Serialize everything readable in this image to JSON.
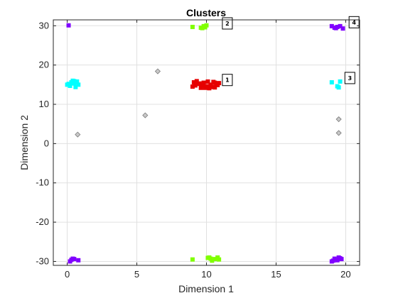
{
  "chart_data": {
    "type": "scatter",
    "title": "Clusters",
    "xlabel": "Dimension 1",
    "ylabel": "Dimension 2",
    "xlim": [
      -1,
      21
    ],
    "ylim": [
      -31,
      31.5
    ],
    "xticks": [
      0,
      5,
      10,
      15,
      20
    ],
    "yticks": [
      -30,
      -20,
      -10,
      0,
      10,
      20,
      30
    ],
    "xtick_labels": [
      "0",
      "5",
      "10",
      "15",
      "20"
    ],
    "ytick_labels": [
      "-30",
      "-20",
      "-10",
      "0",
      "10",
      "20",
      "30"
    ],
    "grid": true,
    "colors": {
      "cluster_1": "#e60000",
      "cluster_2": "#80ff00",
      "cluster_3": "#00ffff",
      "cluster_4": "#8000ff",
      "noise": "#c8c8c8",
      "grid": "#e0e0e0",
      "axis": "#262626"
    },
    "series": [
      {
        "name": "1",
        "values": [
          [
            9.1,
            15.6
          ],
          [
            9.2,
            14.8
          ],
          [
            9.4,
            15.2
          ],
          [
            9.6,
            14.2
          ],
          [
            9.8,
            15.5
          ],
          [
            10.0,
            14.6
          ],
          [
            10.1,
            15.8
          ],
          [
            10.2,
            14.1
          ],
          [
            10.3,
            15.0
          ],
          [
            10.4,
            14.4
          ],
          [
            10.5,
            15.7
          ],
          [
            10.6,
            14.3
          ],
          [
            10.7,
            15.2
          ],
          [
            10.8,
            14.9
          ],
          [
            9.0,
            14.5
          ],
          [
            9.3,
            15.9
          ],
          [
            9.7,
            14.9
          ],
          [
            10.9,
            15.4
          ],
          [
            9.9,
            14.2
          ],
          [
            10.6,
            15.5
          ],
          [
            9.5,
            15.3
          ]
        ]
      },
      {
        "name": "2",
        "values": [
          [
            9.0,
            29.7
          ],
          [
            9.6,
            29.5
          ],
          [
            9.8,
            29.9
          ],
          [
            10.0,
            30.1
          ],
          [
            9.7,
            29.4
          ],
          [
            9.9,
            29.6
          ],
          [
            9.0,
            -29.5
          ],
          [
            10.1,
            -29.1
          ],
          [
            10.3,
            -29.3
          ],
          [
            10.4,
            -29.8
          ],
          [
            10.6,
            -29.4
          ],
          [
            10.8,
            -29.0
          ],
          [
            10.2,
            -29.0
          ],
          [
            10.9,
            -29.5
          ]
        ]
      },
      {
        "name": "3",
        "values": [
          [
            0.0,
            15.0
          ],
          [
            0.2,
            14.7
          ],
          [
            0.3,
            15.6
          ],
          [
            0.4,
            16.0
          ],
          [
            0.5,
            15.3
          ],
          [
            0.6,
            14.4
          ],
          [
            0.7,
            15.8
          ],
          [
            0.8,
            15.0
          ],
          [
            0.1,
            15.2
          ],
          [
            0.5,
            15.9
          ],
          [
            19.0,
            15.6
          ],
          [
            19.4,
            14.6
          ],
          [
            19.5,
            14.3
          ],
          [
            19.6,
            15.8
          ]
        ]
      },
      {
        "name": "4",
        "values": [
          [
            0.1,
            30.1
          ],
          [
            19.0,
            29.9
          ],
          [
            19.2,
            29.5
          ],
          [
            19.4,
            29.7
          ],
          [
            19.6,
            29.9
          ],
          [
            19.8,
            29.3
          ],
          [
            19.3,
            29.4
          ],
          [
            0.2,
            -30.0
          ],
          [
            0.3,
            -29.6
          ],
          [
            0.4,
            -29.3
          ],
          [
            0.5,
            -29.4
          ],
          [
            0.8,
            -29.7
          ],
          [
            19.0,
            -30.0
          ],
          [
            19.2,
            -29.3
          ],
          [
            19.4,
            -29.7
          ],
          [
            19.5,
            -29.0
          ],
          [
            19.7,
            -29.4
          ],
          [
            19.1,
            -29.8
          ],
          [
            19.6,
            -29.2
          ]
        ]
      },
      {
        "name": "",
        "values": [
          [
            6.5,
            18.4
          ],
          [
            5.6,
            7.2
          ],
          [
            0.75,
            2.3
          ],
          [
            19.5,
            6.2
          ],
          [
            19.5,
            2.7
          ]
        ]
      }
    ],
    "cluster_labels": [
      {
        "text": "1",
        "x": 11.5,
        "y": 16.2
      },
      {
        "text": "2",
        "x": 11.5,
        "y": 30.6
      },
      {
        "text": "3",
        "x": 20.3,
        "y": 16.7
      },
      {
        "text": "4",
        "x": 20.6,
        "y": 30.9
      }
    ]
  }
}
